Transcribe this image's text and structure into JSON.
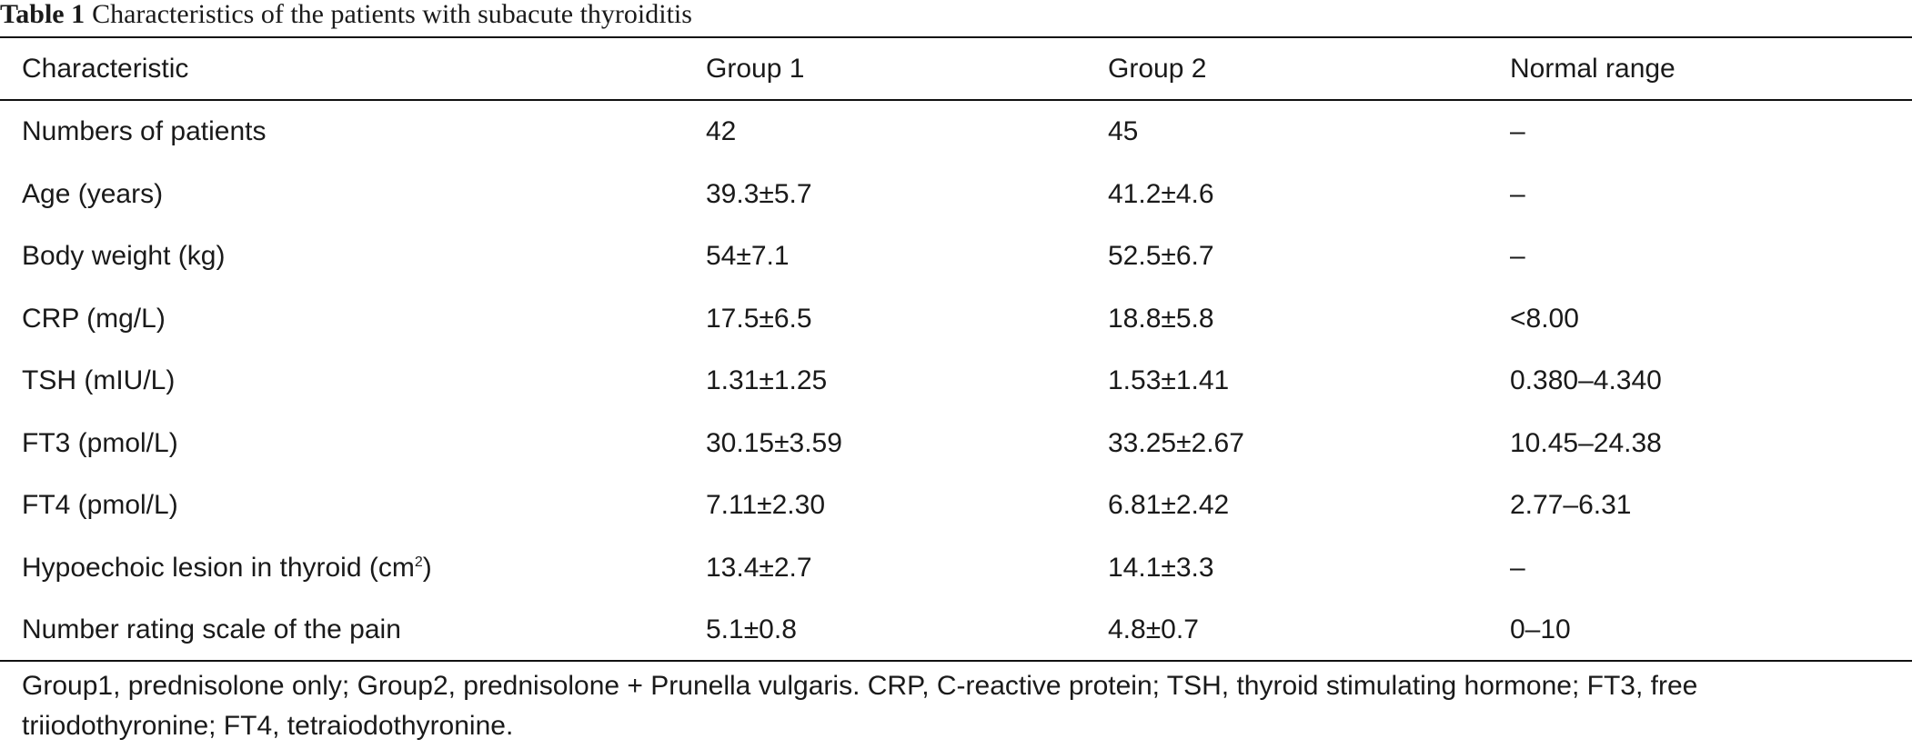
{
  "caption": {
    "label": "Table 1",
    "text": "Characteristics of the patients with subacute thyroiditis"
  },
  "headers": [
    "Characteristic",
    "Group 1",
    "Group 2",
    "Normal range"
  ],
  "rows": [
    {
      "characteristic": "Numbers of patients",
      "group1": "42",
      "group2": "45",
      "normal": "–"
    },
    {
      "characteristic": "Age (years)",
      "group1": "39.3±5.7",
      "group2": "41.2±4.6",
      "normal": "–"
    },
    {
      "characteristic": "Body weight (kg)",
      "group1": "54±7.1",
      "group2": "52.5±6.7",
      "normal": "–"
    },
    {
      "characteristic": "CRP (mg/L)",
      "group1": "17.5±6.5",
      "group2": "18.8±5.8",
      "normal": "<8.00"
    },
    {
      "characteristic": "TSH (mIU/L)",
      "group1": "1.31±1.25",
      "group2": "1.53±1.41",
      "normal": "0.380–4.340"
    },
    {
      "characteristic": "FT3 (pmol/L)",
      "group1": "30.15±3.59",
      "group2": "33.25±2.67",
      "normal": "10.45–24.38"
    },
    {
      "characteristic": "FT4 (pmol/L)",
      "group1": "7.11±2.30",
      "group2": "6.81±2.42",
      "normal": "2.77–6.31"
    },
    {
      "characteristic": "Hypoechoic lesion in thyroid (cm",
      "characteristic_sup": "2",
      "characteristic_tail": ")",
      "group1": "13.4±2.7",
      "group2": "14.1±3.3",
      "normal": "–"
    },
    {
      "characteristic": "Number rating scale of the pain",
      "group1": "5.1±0.8",
      "group2": "4.8±0.7",
      "normal": "0–10"
    }
  ],
  "footnote": "Group1, prednisolone only; Group2, prednisolone + Prunella vulgaris. CRP, C-reactive protein; TSH, thyroid stimulating hormone; FT3, free triiodothyronine; FT4, tetraiodothyronine."
}
